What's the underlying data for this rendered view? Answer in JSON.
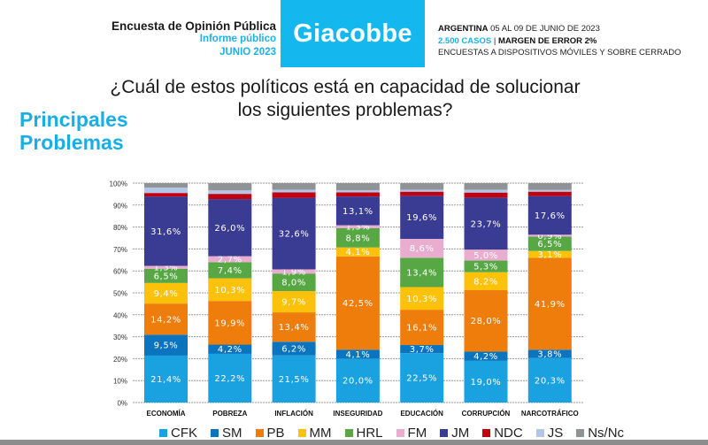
{
  "header": {
    "survey_title": "Encuesta de Opinión Pública",
    "report_type": "Informe público",
    "report_date": "JUNIO 2023",
    "brand": "Giacobbe",
    "country": "ARGENTINA",
    "field_dates": "05 AL 09  DE JUNIO DE 2023",
    "cases": "2.500 CASOS",
    "separator": "|",
    "margin": "MARGEN DE ERROR 2%",
    "method": "ENCUESTAS A DISPOSITIVOS MÓVILES Y SOBRE CERRADO",
    "brand_color": "#14b8ee"
  },
  "question_line1": "¿Cuál de estos políticos está en capacidad de solucionar",
  "question_line2": "los siguientes problemas?",
  "side_title_line1": "Principales",
  "side_title_line2": "Problemas",
  "chart_data": {
    "type": "bar",
    "stacked": true,
    "title": "¿Cuál de estos políticos está en capacidad de solucionar los siguientes problemas?",
    "xlabel": "",
    "ylabel": "",
    "ylim": [
      0,
      100
    ],
    "yticks": [
      "0%",
      "10%",
      "20%",
      "30%",
      "40%",
      "50%",
      "60%",
      "70%",
      "80%",
      "90%",
      "100%"
    ],
    "grid": true,
    "legend_position": "bottom",
    "categories": [
      "ECONOMÍA",
      "POBREZA",
      "INFLACIÓN",
      "INSEGURIDAD",
      "EDUCACIÓN",
      "CORRUPCIÓN",
      "NARCOTRÁFICO"
    ],
    "series": [
      {
        "name": "CFK",
        "color": "#1aa1e0",
        "labeled": true,
        "values": [
          21.4,
          22.2,
          21.5,
          20.0,
          22.5,
          19.0,
          20.3
        ],
        "labels": [
          "21,4%",
          "22,2%",
          "21,5%",
          "20,0%",
          "22,5%",
          "19,0%",
          "20,3%"
        ]
      },
      {
        "name": "SM",
        "color": "#0a74be",
        "labeled": true,
        "values": [
          9.5,
          4.2,
          6.2,
          4.1,
          3.7,
          4.2,
          3.8
        ],
        "labels": [
          "9,5%",
          "4,2%",
          "6,2%",
          "4,1%",
          "3,7%",
          "4,2%",
          "3,8%"
        ]
      },
      {
        "name": "PB",
        "color": "#ee7d0b",
        "labeled": true,
        "values": [
          14.2,
          19.9,
          13.4,
          42.5,
          16.1,
          28.0,
          41.9
        ],
        "labels": [
          "14,2%",
          "19,9%",
          "13,4%",
          "42,5%",
          "16,1%",
          "28,0%",
          "41,9%"
        ]
      },
      {
        "name": "MM",
        "color": "#fcc20a",
        "labeled": true,
        "values": [
          9.4,
          10.3,
          9.7,
          4.1,
          10.3,
          8.2,
          3.1
        ],
        "labels": [
          "9,4%",
          "10,3%",
          "9,7%",
          "4,1%",
          "10,3%",
          "8,2%",
          "3,1%"
        ]
      },
      {
        "name": "HRL",
        "color": "#57a844",
        "labeled": true,
        "values": [
          6.5,
          7.4,
          8.0,
          8.8,
          13.4,
          5.3,
          6.5
        ],
        "labels": [
          "6,5%",
          "7,4%",
          "8,0%",
          "8,8%",
          "13,4%",
          "5,3%",
          "6,5%"
        ]
      },
      {
        "name": "FM",
        "color": "#e9adcf",
        "labeled": true,
        "values": [
          1.3,
          2.7,
          1.9,
          1.3,
          8.6,
          5.0,
          0.9
        ],
        "labels": [
          "1,3%",
          "2,7%",
          "1,9%",
          "1,3%",
          "8,6%",
          "5,0%",
          "0,9%"
        ]
      },
      {
        "name": "JM",
        "color": "#3a3b93",
        "labeled": true,
        "values": [
          31.6,
          26.0,
          32.6,
          13.1,
          19.6,
          23.7,
          17.6
        ],
        "labels": [
          "31,6%",
          "26,0%",
          "32,6%",
          "13,1%",
          "19,6%",
          "23,7%",
          "17,6%"
        ]
      },
      {
        "name": "NDC",
        "color": "#c00010",
        "labeled": false,
        "values": [
          1.6,
          2.4,
          2.5,
          1.9,
          1.9,
          2.3,
          2.0
        ]
      },
      {
        "name": "JS",
        "color": "#b4c6e6",
        "labeled": false,
        "values": [
          2.5,
          1.6,
          1.2,
          1.0,
          0.9,
          1.3,
          0.8
        ]
      },
      {
        "name": "Ns/Nc",
        "color": "#8f9396",
        "labeled": false,
        "values": [
          2.0,
          3.3,
          3.0,
          3.2,
          3.0,
          3.0,
          3.1
        ]
      }
    ]
  }
}
